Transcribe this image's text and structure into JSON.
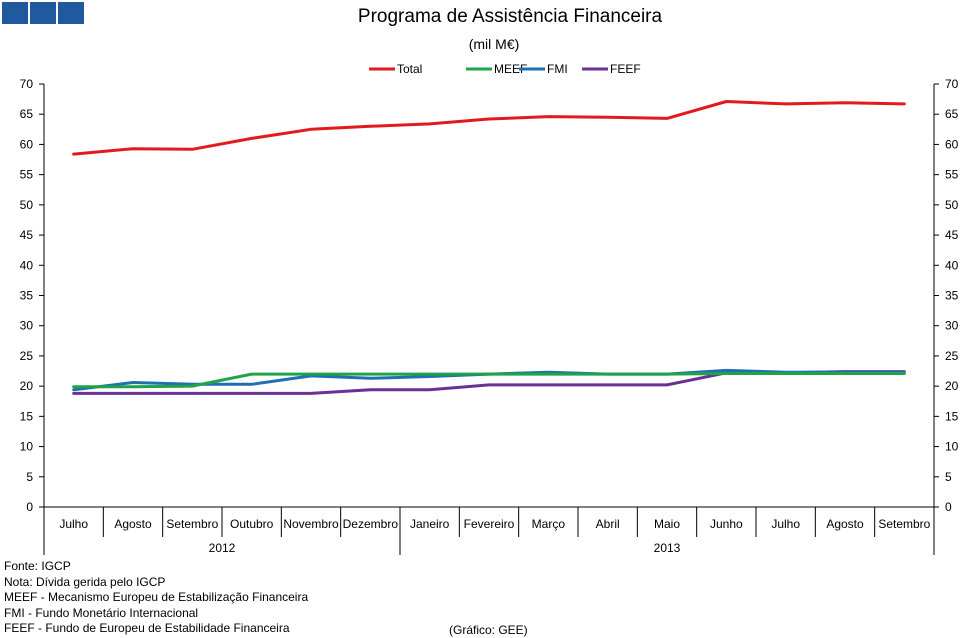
{
  "chart_data": {
    "type": "line",
    "title": "Programa  de Assistência Financeira",
    "subtitle": "(mil M€)",
    "categories": [
      "Julho",
      "Agosto",
      "Setembro",
      "Outubro",
      "Novembro",
      "Dezembro",
      "Janeiro",
      "Fevereiro",
      "Março",
      "Abril",
      "Maio",
      "Junho",
      "Julho",
      "Agosto",
      "Setembro"
    ],
    "year_groups": [
      {
        "label": "2012",
        "start": 0,
        "end": 5
      },
      {
        "label": "2013",
        "start": 6,
        "end": 14
      }
    ],
    "ylim": [
      0,
      70
    ],
    "yticks": [
      "0",
      "5",
      "10",
      "15",
      "20",
      "25",
      "30",
      "35",
      "40",
      "45",
      "50",
      "55",
      "60",
      "65",
      "70"
    ],
    "legend_position": "top",
    "series": [
      {
        "name": "Total",
        "color": "#e31a1c",
        "values": [
          58.4,
          59.3,
          59.2,
          61.0,
          62.5,
          63.0,
          63.4,
          64.2,
          64.6,
          64.5,
          64.3,
          67.1,
          66.7,
          66.9,
          66.7
        ]
      },
      {
        "name": "MEEF",
        "color": "#1ea34a",
        "values": [
          19.9,
          19.9,
          20.0,
          22.0,
          22.0,
          22.0,
          22.0,
          22.0,
          22.0,
          22.0,
          22.0,
          22.1,
          22.1,
          22.1,
          22.1
        ]
      },
      {
        "name": "FMI",
        "color": "#1f6fb2",
        "values": [
          19.4,
          20.6,
          20.3,
          20.3,
          21.7,
          21.3,
          21.6,
          22.0,
          22.3,
          22.0,
          22.0,
          22.6,
          22.3,
          22.3,
          22.3
        ]
      },
      {
        "name": "FEEF",
        "color": "#6a3092",
        "values": [
          18.8,
          18.8,
          18.8,
          18.8,
          18.8,
          19.4,
          19.4,
          20.2,
          20.2,
          20.2,
          20.2,
          22.2,
          22.2,
          22.4,
          22.4
        ]
      }
    ]
  },
  "footnotes": [
    "Fonte: IGCP",
    "Nota: Dívida  gerida  pelo IGCP",
    "MEEF - Mecanismo Europeu de Estabilização Financeira",
    "FMI - Fundo Monetário Internacional",
    "FEEF - Fundo de Europeu de Estabilidade Financeira"
  ],
  "credit": "(Gráfico:  GEE)",
  "brand_color": "#1f5aa0"
}
